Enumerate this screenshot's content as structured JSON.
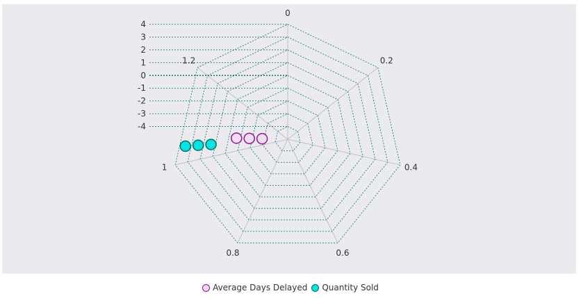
{
  "chart_data": {
    "type": "radar",
    "angular_ticks": [
      "0",
      "0.2",
      "0.4",
      "0.6",
      "0.8",
      "1",
      "1.2"
    ],
    "radial_ticks": [
      "4",
      "3",
      "2",
      "1",
      "0",
      "-1",
      "-2",
      "-3",
      "-4"
    ],
    "rlim": [
      -5,
      4
    ],
    "angle_range": [
      0,
      1.4
    ],
    "grid": true,
    "legend_position": "bottom",
    "series": [
      {
        "name": "Average Days Delayed",
        "marker_fill": "#f3dcf3",
        "marker_stroke": "#8b1a8b",
        "points": [
          {
            "angle": 1.055,
            "r": -3.0
          },
          {
            "angle": 1.055,
            "r": -2.0
          },
          {
            "angle": 1.055,
            "r": -1.0
          }
        ]
      },
      {
        "name": "Quantity Sold",
        "marker_fill": "#00e5e5",
        "marker_stroke": "#0b6b5a",
        "points": [
          {
            "angle": 1.035,
            "r": 1.0
          },
          {
            "angle": 1.035,
            "r": 2.0
          },
          {
            "angle": 1.035,
            "r": 3.0
          }
        ]
      }
    ],
    "colors": {
      "grid": "#2e8b8b",
      "spoke": "#c0c0c0",
      "plot_background": "#ebebef"
    }
  }
}
